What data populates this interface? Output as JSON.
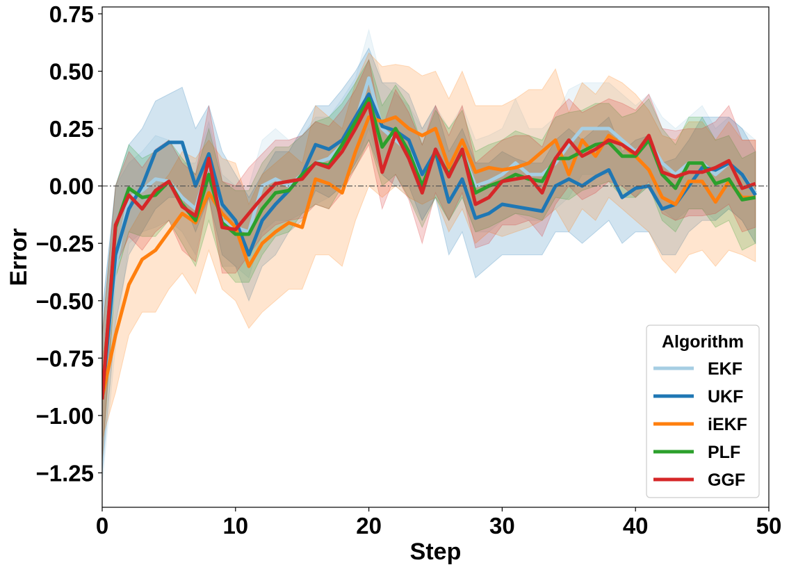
{
  "chart_data": {
    "type": "line",
    "xlabel": "Step",
    "ylabel": "Error",
    "xlim": [
      0,
      50
    ],
    "ylim": [
      -1.4,
      0.78
    ],
    "xticks": [
      0,
      10,
      20,
      30,
      40,
      50
    ],
    "yticks": [
      -1.25,
      -1.0,
      -0.75,
      -0.5,
      -0.25,
      0.0,
      0.25,
      0.5,
      0.75
    ],
    "ytick_labels": [
      "−1.25",
      "−1.00",
      "−0.75",
      "−0.50",
      "−0.25",
      "0.00",
      "0.25",
      "0.50",
      "0.75"
    ],
    "xtick_labels": [
      "0",
      "10",
      "20",
      "30",
      "40",
      "50"
    ],
    "reference_line_y": 0.0,
    "grid": false,
    "legend": {
      "title": "Algorithm",
      "placement": "lower-right"
    },
    "x": [
      0,
      1,
      2,
      3,
      4,
      5,
      6,
      7,
      8,
      9,
      10,
      11,
      12,
      13,
      14,
      15,
      16,
      17,
      18,
      19,
      20,
      21,
      22,
      23,
      24,
      25,
      26,
      27,
      28,
      29,
      30,
      31,
      32,
      33,
      34,
      35,
      36,
      37,
      38,
      39,
      40,
      41,
      42,
      43,
      44,
      45,
      46,
      47,
      48,
      49
    ],
    "series": [
      {
        "name": "EKF",
        "color": "#a6cee3",
        "values": [
          -0.93,
          -0.35,
          -0.05,
          -0.02,
          0.03,
          0.02,
          -0.05,
          -0.1,
          0.1,
          -0.15,
          -0.18,
          -0.2,
          0.0,
          0.03,
          0.0,
          0.05,
          0.1,
          0.12,
          0.18,
          0.28,
          0.47,
          0.25,
          0.2,
          0.15,
          0.05,
          0.15,
          0.05,
          0.15,
          0.0,
          0.02,
          0.05,
          0.1,
          0.05,
          0.05,
          0.1,
          0.18,
          0.25,
          0.25,
          0.25,
          0.2,
          0.15,
          0.2,
          0.1,
          0.05,
          0.1,
          0.1,
          0.05,
          0.1,
          0.05,
          -0.03
        ],
        "lower": [
          -1.3,
          -0.7,
          -0.25,
          -0.2,
          -0.18,
          -0.15,
          -0.2,
          -0.3,
          -0.05,
          -0.35,
          -0.35,
          -0.4,
          -0.2,
          -0.15,
          -0.15,
          -0.12,
          -0.08,
          -0.05,
          0.0,
          0.1,
          0.25,
          0.05,
          0.0,
          -0.05,
          -0.15,
          -0.05,
          -0.15,
          -0.05,
          -0.2,
          -0.2,
          -0.15,
          -0.12,
          -0.15,
          -0.15,
          -0.1,
          -0.05,
          0.05,
          0.05,
          0.05,
          0.0,
          -0.05,
          0.0,
          -0.1,
          -0.15,
          -0.1,
          -0.1,
          -0.15,
          -0.1,
          -0.15,
          -0.25
        ],
        "upper": [
          -0.55,
          0.0,
          0.1,
          0.15,
          0.22,
          0.2,
          0.1,
          0.1,
          0.28,
          0.05,
          0.0,
          0.0,
          0.2,
          0.25,
          0.2,
          0.22,
          0.3,
          0.3,
          0.38,
          0.47,
          0.68,
          0.45,
          0.4,
          0.35,
          0.25,
          0.35,
          0.25,
          0.35,
          0.2,
          0.22,
          0.25,
          0.38,
          0.25,
          0.25,
          0.3,
          0.42,
          0.45,
          0.45,
          0.45,
          0.4,
          0.35,
          0.4,
          0.3,
          0.25,
          0.3,
          0.35,
          0.25,
          0.3,
          0.25,
          0.2
        ]
      },
      {
        "name": "UKF",
        "color": "#1f77b4",
        "values": [
          -0.93,
          -0.3,
          -0.1,
          0.0,
          0.15,
          0.19,
          0.19,
          0.0,
          0.14,
          -0.08,
          -0.15,
          -0.3,
          -0.15,
          -0.08,
          -0.02,
          0.05,
          0.18,
          0.16,
          0.2,
          0.3,
          0.4,
          0.26,
          0.24,
          0.2,
          0.05,
          0.15,
          -0.07,
          0.03,
          -0.14,
          -0.12,
          -0.08,
          -0.09,
          -0.1,
          -0.11,
          0.0,
          0.03,
          0.0,
          0.04,
          0.07,
          -0.05,
          -0.01,
          0.0,
          -0.1,
          -0.08,
          0.0,
          0.08,
          0.07,
          0.1,
          0.05,
          -0.04
        ],
        "lower": [
          -1.25,
          -0.6,
          -0.3,
          -0.2,
          -0.1,
          -0.05,
          -0.05,
          -0.2,
          -0.05,
          -0.3,
          -0.35,
          -0.5,
          -0.35,
          -0.3,
          -0.2,
          -0.15,
          -0.02,
          -0.05,
          0.0,
          0.1,
          0.2,
          0.05,
          0.0,
          0.0,
          -0.15,
          -0.05,
          -0.3,
          -0.2,
          -0.4,
          -0.35,
          -0.3,
          -0.3,
          -0.3,
          -0.3,
          -0.2,
          -0.2,
          -0.25,
          -0.2,
          -0.15,
          -0.25,
          -0.2,
          -0.2,
          -0.3,
          -0.3,
          -0.2,
          -0.15,
          -0.15,
          -0.1,
          -0.15,
          -0.25
        ],
        "upper": [
          -0.55,
          0.0,
          0.18,
          0.25,
          0.37,
          0.4,
          0.43,
          0.25,
          0.35,
          0.15,
          0.05,
          -0.05,
          0.05,
          0.15,
          0.15,
          0.25,
          0.35,
          0.35,
          0.42,
          0.5,
          0.6,
          0.45,
          0.45,
          0.4,
          0.25,
          0.35,
          0.15,
          0.25,
          0.1,
          0.1,
          0.15,
          0.12,
          0.1,
          0.1,
          0.2,
          0.25,
          0.2,
          0.25,
          0.3,
          0.15,
          0.2,
          0.22,
          0.1,
          0.12,
          0.2,
          0.3,
          0.3,
          0.3,
          0.25,
          0.15
        ]
      },
      {
        "name": "iEKF",
        "color": "#ff7f0e",
        "values": [
          -0.92,
          -0.65,
          -0.43,
          -0.32,
          -0.28,
          -0.2,
          -0.12,
          -0.16,
          -0.03,
          -0.12,
          -0.18,
          -0.35,
          -0.25,
          -0.2,
          -0.16,
          -0.18,
          0.03,
          0.01,
          -0.03,
          0.15,
          0.3,
          0.28,
          0.3,
          0.25,
          0.22,
          0.25,
          0.08,
          0.2,
          0.06,
          0.08,
          0.07,
          0.08,
          0.1,
          0.15,
          0.2,
          0.05,
          0.2,
          0.13,
          0.22,
          0.18,
          0.13,
          0.07,
          -0.05,
          -0.08,
          0.02,
          0.02,
          -0.07,
          0.02,
          -0.05,
          -0.05
        ],
        "lower": [
          -1.1,
          -0.9,
          -0.65,
          -0.55,
          -0.55,
          -0.45,
          -0.38,
          -0.47,
          -0.28,
          -0.45,
          -0.5,
          -0.62,
          -0.55,
          -0.5,
          -0.45,
          -0.45,
          -0.3,
          -0.3,
          -0.35,
          -0.15,
          0.0,
          -0.05,
          0.0,
          -0.05,
          -0.08,
          -0.05,
          -0.2,
          -0.1,
          -0.25,
          -0.2,
          -0.22,
          -0.2,
          -0.18,
          -0.15,
          -0.1,
          -0.2,
          -0.1,
          -0.15,
          -0.05,
          -0.1,
          -0.15,
          -0.2,
          -0.32,
          -0.38,
          -0.3,
          -0.28,
          -0.35,
          -0.28,
          -0.3,
          -0.33
        ],
        "upper": [
          -0.75,
          -0.4,
          -0.2,
          -0.1,
          -0.02,
          0.05,
          0.15,
          0.12,
          0.2,
          0.12,
          0.1,
          -0.08,
          0.05,
          0.1,
          0.15,
          0.1,
          0.35,
          0.3,
          0.25,
          0.45,
          0.58,
          0.52,
          0.53,
          0.52,
          0.48,
          0.5,
          0.38,
          0.5,
          0.35,
          0.35,
          0.35,
          0.38,
          0.42,
          0.42,
          0.51,
          0.32,
          0.45,
          0.4,
          0.48,
          0.45,
          0.4,
          0.33,
          0.22,
          0.2,
          0.28,
          0.28,
          0.2,
          0.28,
          0.2,
          0.2
        ]
      },
      {
        "name": "PLF",
        "color": "#2ca02c",
        "values": [
          -0.93,
          -0.18,
          -0.01,
          -0.05,
          -0.04,
          0.02,
          -0.08,
          -0.15,
          0.05,
          -0.16,
          -0.21,
          -0.21,
          -0.1,
          -0.03,
          -0.02,
          0.05,
          0.1,
          0.09,
          0.18,
          0.28,
          0.38,
          0.17,
          0.25,
          0.15,
          0.0,
          0.15,
          0.05,
          0.15,
          -0.03,
          0.0,
          0.02,
          0.05,
          0.03,
          0.02,
          0.12,
          0.12,
          0.15,
          0.18,
          0.19,
          0.13,
          0.13,
          0.2,
          0.05,
          -0.01,
          0.1,
          0.1,
          0.01,
          0.03,
          -0.06,
          -0.05
        ],
        "lower": [
          -1.2,
          -0.4,
          -0.2,
          -0.22,
          -0.22,
          -0.15,
          -0.25,
          -0.35,
          -0.15,
          -0.35,
          -0.42,
          -0.42,
          -0.3,
          -0.22,
          -0.2,
          -0.12,
          -0.08,
          -0.1,
          0.0,
          0.08,
          0.2,
          0.0,
          0.05,
          -0.05,
          -0.18,
          -0.05,
          -0.15,
          -0.05,
          -0.2,
          -0.18,
          -0.15,
          -0.12,
          -0.13,
          -0.15,
          -0.05,
          -0.06,
          -0.02,
          0.0,
          0.02,
          -0.05,
          -0.05,
          0.0,
          -0.15,
          -0.2,
          -0.1,
          -0.1,
          -0.18,
          -0.15,
          -0.28,
          -0.25
        ],
        "upper": [
          -0.65,
          0.0,
          0.18,
          0.12,
          0.15,
          0.2,
          0.12,
          0.05,
          0.25,
          0.02,
          -0.02,
          -0.02,
          0.1,
          0.17,
          0.17,
          0.22,
          0.28,
          0.3,
          0.36,
          0.45,
          0.55,
          0.35,
          0.44,
          0.35,
          0.18,
          0.33,
          0.25,
          0.33,
          0.15,
          0.18,
          0.2,
          0.24,
          0.22,
          0.2,
          0.3,
          0.32,
          0.33,
          0.36,
          0.36,
          0.3,
          0.32,
          0.38,
          0.25,
          0.18,
          0.3,
          0.3,
          0.2,
          0.22,
          0.12,
          0.15
        ]
      },
      {
        "name": "GGF",
        "color": "#d62728",
        "values": [
          -0.93,
          -0.17,
          -0.04,
          -0.1,
          -0.02,
          0.02,
          -0.09,
          -0.13,
          0.12,
          -0.18,
          -0.19,
          -0.12,
          -0.05,
          0.01,
          0.02,
          0.03,
          0.1,
          0.08,
          0.15,
          0.25,
          0.36,
          0.06,
          0.23,
          0.12,
          -0.03,
          0.16,
          0.04,
          0.16,
          -0.08,
          -0.05,
          0.02,
          0.03,
          0.04,
          -0.03,
          0.12,
          0.2,
          0.13,
          0.16,
          0.2,
          0.18,
          0.14,
          0.22,
          0.06,
          0.04,
          0.06,
          0.06,
          0.08,
          0.11,
          -0.01,
          0.01
        ],
        "lower": [
          -1.2,
          -0.35,
          -0.22,
          -0.28,
          -0.2,
          -0.15,
          -0.28,
          -0.33,
          -0.05,
          -0.38,
          -0.38,
          -0.3,
          -0.22,
          -0.17,
          -0.15,
          -0.14,
          -0.08,
          -0.1,
          -0.03,
          0.08,
          0.18,
          -0.1,
          0.05,
          -0.06,
          -0.25,
          -0.03,
          -0.15,
          -0.03,
          -0.27,
          -0.25,
          -0.17,
          -0.17,
          -0.15,
          -0.22,
          -0.08,
          0.0,
          -0.06,
          -0.03,
          0.02,
          0.0,
          -0.05,
          0.02,
          -0.12,
          -0.15,
          -0.13,
          -0.13,
          -0.12,
          -0.08,
          -0.2,
          -0.18
        ],
        "upper": [
          -0.65,
          0.0,
          0.15,
          0.08,
          0.16,
          0.2,
          0.1,
          0.05,
          0.35,
          0.02,
          0.0,
          0.08,
          0.14,
          0.2,
          0.2,
          0.22,
          0.28,
          0.26,
          0.33,
          0.42,
          0.55,
          0.25,
          0.42,
          0.32,
          0.18,
          0.35,
          0.22,
          0.35,
          0.1,
          0.15,
          0.2,
          0.22,
          0.22,
          0.17,
          0.32,
          0.38,
          0.32,
          0.35,
          0.38,
          0.36,
          0.33,
          0.4,
          0.25,
          0.24,
          0.25,
          0.25,
          0.28,
          0.35,
          0.2,
          0.2
        ]
      }
    ]
  }
}
